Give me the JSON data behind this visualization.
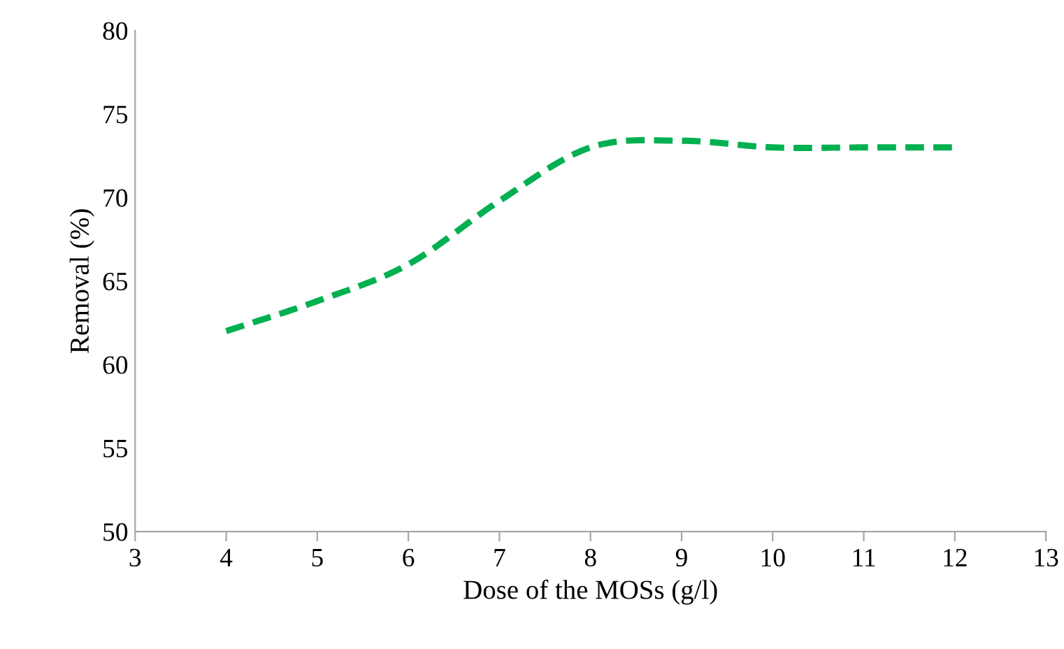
{
  "chart_data": {
    "type": "line",
    "xlabel": "Dose of the MOSs (g/l)",
    "ylabel": "Removal (%)",
    "x": [
      4,
      5,
      6,
      7,
      8,
      9,
      10,
      11,
      12
    ],
    "series": [
      {
        "color": "#00b050",
        "values": [
          62,
          63.8,
          66,
          69.8,
          73,
          73.4,
          73,
          73,
          73
        ]
      }
    ],
    "xlim": [
      3,
      13
    ],
    "xticks": [
      3,
      4,
      5,
      6,
      7,
      8,
      9,
      10,
      11,
      12,
      13
    ],
    "ylim": [
      50,
      80
    ],
    "yticks": [
      50,
      55,
      60,
      65,
      70,
      75,
      80
    ],
    "line_style": "dashed",
    "marker": "none",
    "grid": false,
    "legend": false
  }
}
